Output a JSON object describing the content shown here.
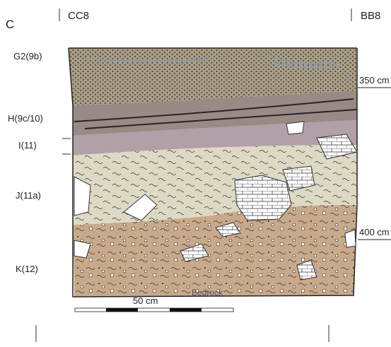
{
  "panel": "C",
  "sections": {
    "left": "CC8",
    "right": "BB8"
  },
  "layers": [
    "G2(9b)",
    "H(9c/10)",
    "I(11)",
    "J(11a)",
    "K(12)"
  ],
  "depths": [
    "350 cm",
    "400 cm"
  ],
  "scale": "50 cm",
  "base": "Bedrock"
}
